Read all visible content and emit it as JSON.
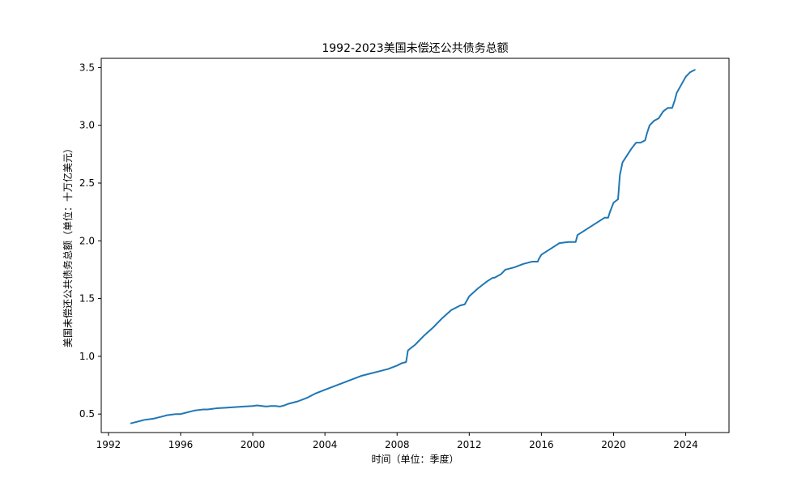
{
  "chart_data": {
    "type": "line",
    "title": "1992-2023美国未偿还公共债务总额",
    "xlabel": "时间（单位：季度）",
    "ylabel": "美国未偿还公共债务总额（单位：十万亿美元）",
    "xlim": [
      1991.6,
      2026.4
    ],
    "ylim": [
      0.34,
      3.58
    ],
    "x_ticks": [
      1992,
      1996,
      2000,
      2004,
      2008,
      2012,
      2016,
      2020,
      2024
    ],
    "y_ticks": [
      0.5,
      1.0,
      1.5,
      2.0,
      2.5,
      3.0,
      3.5
    ],
    "grid": false,
    "legend": "none",
    "line_color": "#1f77b4",
    "series": [
      {
        "x": [
          1993.25,
          1993.5,
          1993.75,
          1994.0,
          1994.25,
          1994.5,
          1994.75,
          1995.0,
          1995.25,
          1995.5,
          1995.75,
          1996.0,
          1996.25,
          1996.5,
          1996.75,
          1997.0,
          1997.25,
          1997.5,
          1997.75,
          1998.0,
          1998.5,
          1999.0,
          1999.5,
          2000.0,
          2000.25,
          2000.5,
          2000.75,
          2001.0,
          2001.25,
          2001.5,
          2001.75,
          2002.0,
          2002.5,
          2003.0,
          2003.5,
          2004.0,
          2004.5,
          2005.0,
          2005.5,
          2006.0,
          2006.5,
          2007.0,
          2007.5,
          2008.0,
          2008.25,
          2008.5,
          2008.6,
          2008.75,
          2009.0,
          2009.5,
          2010.0,
          2010.5,
          2011.0,
          2011.5,
          2011.75,
          2012.0,
          2012.5,
          2013.0,
          2013.3,
          2013.4,
          2013.75,
          2014.0,
          2014.5,
          2015.0,
          2015.5,
          2015.8,
          2015.85,
          2016.0,
          2016.5,
          2017.0,
          2017.5,
          2017.9,
          2018.0,
          2018.5,
          2019.0,
          2019.5,
          2019.7,
          2019.8,
          2020.0,
          2020.25,
          2020.35,
          2020.5,
          2020.75,
          2021.0,
          2021.25,
          2021.5,
          2021.75,
          2021.85,
          2022.0,
          2022.25,
          2022.5,
          2022.75,
          2023.0,
          2023.25,
          2023.4,
          2023.5,
          2023.75,
          2024.0,
          2024.25,
          2024.5
        ],
        "y": [
          0.42,
          0.43,
          0.44,
          0.45,
          0.455,
          0.46,
          0.47,
          0.48,
          0.49,
          0.495,
          0.5,
          0.5,
          0.51,
          0.52,
          0.53,
          0.535,
          0.54,
          0.54,
          0.545,
          0.55,
          0.555,
          0.56,
          0.565,
          0.57,
          0.575,
          0.57,
          0.565,
          0.57,
          0.57,
          0.565,
          0.575,
          0.59,
          0.61,
          0.64,
          0.68,
          0.71,
          0.74,
          0.77,
          0.8,
          0.83,
          0.85,
          0.87,
          0.89,
          0.92,
          0.94,
          0.95,
          1.05,
          1.07,
          1.1,
          1.18,
          1.25,
          1.33,
          1.4,
          1.44,
          1.45,
          1.52,
          1.59,
          1.65,
          1.68,
          1.68,
          1.71,
          1.75,
          1.77,
          1.8,
          1.82,
          1.82,
          1.84,
          1.88,
          1.93,
          1.98,
          1.99,
          1.99,
          2.05,
          2.1,
          2.15,
          2.2,
          2.2,
          2.25,
          2.33,
          2.36,
          2.57,
          2.68,
          2.74,
          2.8,
          2.85,
          2.85,
          2.87,
          2.93,
          3.0,
          3.04,
          3.06,
          3.12,
          3.15,
          3.15,
          3.22,
          3.28,
          3.35,
          3.42,
          3.46,
          3.48
        ]
      }
    ]
  }
}
